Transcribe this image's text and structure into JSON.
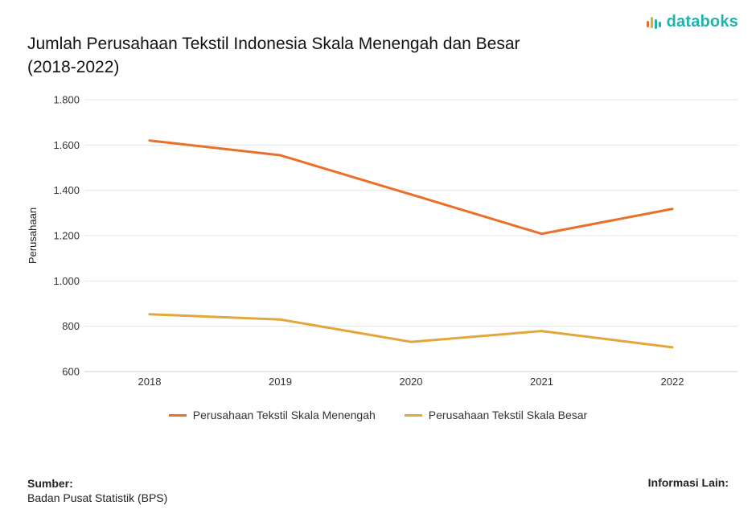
{
  "brand": {
    "name": "databoks",
    "logo_color": "#1fb3ad",
    "logo_icon": "bar-signal-icon"
  },
  "chart_data": {
    "type": "line",
    "title": "Jumlah Perusahaan Tekstil Indonesia Skala Menengah dan Besar (2018-2022)",
    "ylabel": "Perusahaan",
    "xlabel": "",
    "categories": [
      "2018",
      "2019",
      "2020",
      "2021",
      "2022"
    ],
    "yticks": [
      "600",
      "800",
      "1.000",
      "1.200",
      "1.400",
      "1.600",
      "1.800"
    ],
    "ylim": [
      600,
      1800
    ],
    "grid": true,
    "legend_position": "bottom",
    "series": [
      {
        "name": "Perusahaan Tekstil Skala Menengah",
        "color": "#e8702a",
        "values": [
          1620,
          1555,
          1382,
          1208,
          1318
        ]
      },
      {
        "name": "Perusahaan Tekstil Skala Besar",
        "color": "#e2a63b",
        "values": [
          853,
          830,
          731,
          779,
          707
        ]
      }
    ]
  },
  "footer": {
    "source_title": "Sumber:",
    "source_text": "Badan Pusat Statistik (BPS)",
    "info_title": "Informasi Lain:"
  }
}
